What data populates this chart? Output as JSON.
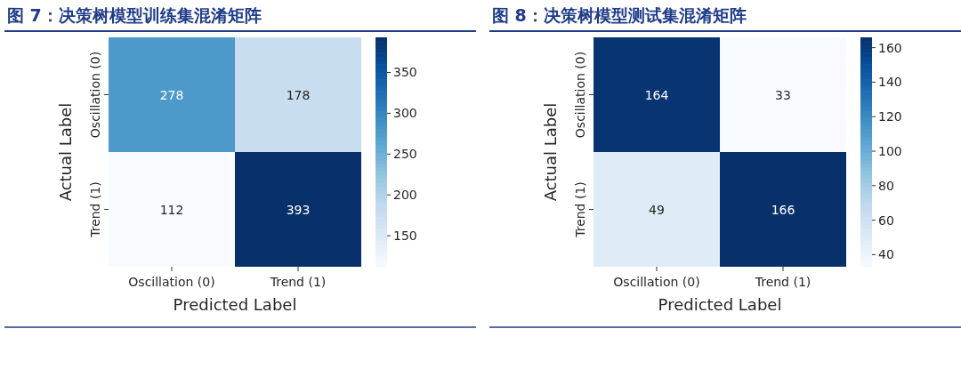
{
  "chart_data": [
    {
      "type": "heatmap",
      "title": "图 7：决策树模型训练集混淆矩阵",
      "xlabel": "Predicted Label",
      "ylabel": "Actual Label",
      "categories": [
        "Oscillation (0)",
        "Trend (1)"
      ],
      "y_categories": [
        "Oscillation (0)",
        "Trend (1)"
      ],
      "cells": [
        [
          278,
          178
        ],
        [
          112,
          393
        ]
      ],
      "clim": [
        112,
        393
      ],
      "cticks": [
        150,
        200,
        250,
        300,
        350
      ],
      "data_labels": true
    },
    {
      "type": "heatmap",
      "title": "图 8：决策树模型测试集混淆矩阵",
      "xlabel": "Predicted Label",
      "ylabel": "Actual Label",
      "categories": [
        "Oscillation (0)",
        "Trend (1)"
      ],
      "y_categories": [
        "Oscillation (0)",
        "Trend (1)"
      ],
      "cells": [
        [
          164,
          33
        ],
        [
          49,
          166
        ]
      ],
      "clim": [
        33,
        166
      ],
      "cticks": [
        40,
        60,
        80,
        100,
        120,
        140,
        160
      ],
      "data_labels": true
    }
  ]
}
